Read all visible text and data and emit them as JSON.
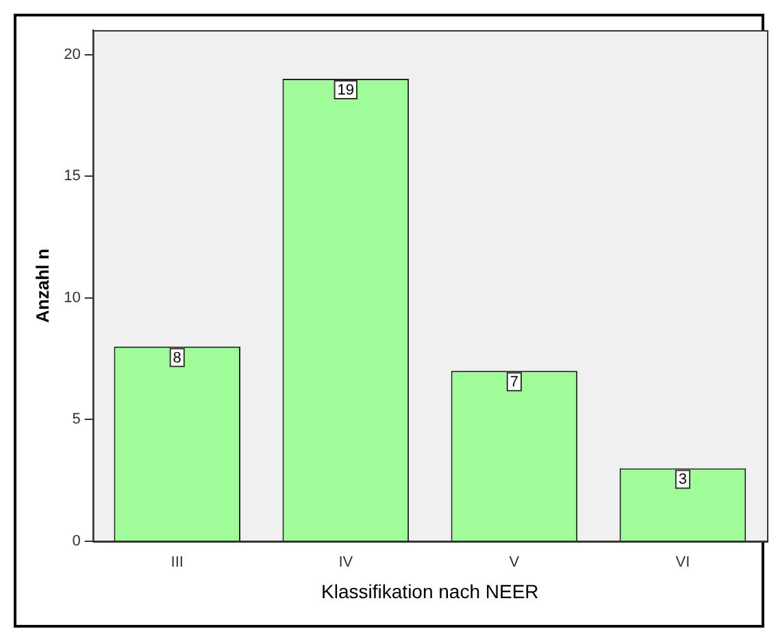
{
  "chart_data": {
    "type": "bar",
    "xlabel": "Klassifikation nach NEER",
    "ylabel": "Anzahl n",
    "categories": [
      "III",
      "IV",
      "V",
      "VI"
    ],
    "values": [
      8,
      19,
      7,
      3
    ],
    "color": "#a0fc98",
    "ylim": [
      0,
      21
    ],
    "yticks": [
      0,
      5,
      10,
      15,
      20
    ],
    "grid": false,
    "legend": false,
    "data_labels": true
  }
}
